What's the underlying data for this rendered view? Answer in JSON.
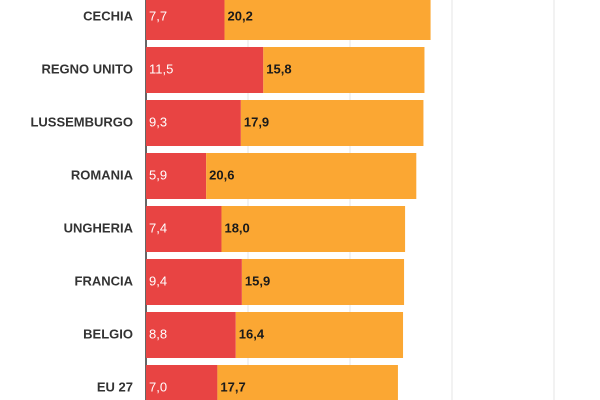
{
  "chart_data": {
    "type": "bar",
    "orientation": "horizontal",
    "stacked": true,
    "categories": [
      "CECHIA",
      "REGNO UNITO",
      "LUSSEMBURGO",
      "ROMANIA",
      "UNGHERIA",
      "FRANCIA",
      "BELGIO",
      "EU 27"
    ],
    "series": [
      {
        "values": [
          7.7,
          11.5,
          9.3,
          5.9,
          7.4,
          9.4,
          8.8,
          7.0
        ],
        "labels": [
          "7,7",
          "11,5",
          "9,3",
          "5,9",
          "7,4",
          "9,4",
          "8,8",
          "7,0"
        ]
      },
      {
        "values": [
          20.2,
          15.8,
          17.9,
          20.6,
          18.0,
          15.9,
          16.4,
          17.7
        ],
        "labels": [
          "20,2",
          "15,8",
          "17,9",
          "20,6",
          "18,0",
          "15,9",
          "16,4",
          "17,7"
        ]
      }
    ],
    "colors": [
      "#e84443",
      "#fba733"
    ],
    "xlim": [
      0,
      40
    ],
    "grid": true
  }
}
